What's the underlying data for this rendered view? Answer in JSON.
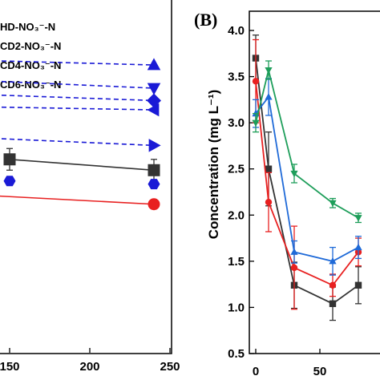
{
  "chart_data": [
    {
      "type": "line",
      "legend": [
        "HD-NO₃⁻-N",
        "CD2-NO₃⁻-N",
        "CD4-NO₃⁻-N",
        "CD6-NO₃⁻-N"
      ],
      "xticks": [
        "150",
        "200",
        "250"
      ],
      "xlim": [
        132,
        250
      ],
      "series": [
        {
          "color": "#1a1ad6",
          "marker": "triangle-up",
          "style": "dashed",
          "x": [
            130,
            240
          ],
          "y": [
            9.45,
            9.3
          ]
        },
        {
          "color": "#1a1ad6",
          "marker": "triangle-down",
          "style": "dashed",
          "x": [
            130,
            240
          ],
          "y": [
            8.8,
            8.55
          ]
        },
        {
          "color": "#1a1ad6",
          "marker": "diamond",
          "style": "dashed",
          "x": [
            130,
            240
          ],
          "y": [
            8.35,
            8.15
          ]
        },
        {
          "color": "#1a1ad6",
          "marker": "triangle-left",
          "style": "dashed",
          "x": [
            130,
            240
          ],
          "y": [
            7.95,
            7.85
          ]
        },
        {
          "color": "#1a1ad6",
          "marker": "triangle-right",
          "style": "dashed",
          "x": [
            130,
            240
          ],
          "y": [
            6.95,
            6.7
          ]
        },
        {
          "color": "#333333",
          "marker": "square",
          "style": "solid",
          "x": [
            150,
            240
          ],
          "y": [
            6.25,
            5.9
          ],
          "err": [
            0.35,
            0.35
          ]
        },
        {
          "color": "#1a1ad6",
          "marker": "hexagon",
          "style": "none",
          "x": [
            150,
            240
          ],
          "y": [
            5.55,
            5.45
          ]
        },
        {
          "color": "#e82020",
          "marker": "circle",
          "style": "solid",
          "x": [
            130,
            240
          ],
          "y": [
            5.1,
            4.8
          ],
          "err": [
            0,
            0.15
          ]
        }
      ]
    },
    {
      "type": "line",
      "panel_label": "(B)",
      "ylabel": "Concentration (mg L⁻¹)",
      "ylim": [
        0.5,
        4.2
      ],
      "yticks": [
        "0.5",
        "1.0",
        "1.5",
        "2.0",
        "2.5",
        "3.0",
        "3.5",
        "4.0"
      ],
      "xlim": [
        -2,
        80
      ],
      "xticks": [
        "0",
        "50"
      ],
      "series": [
        {
          "color": "#333333",
          "marker": "square",
          "x": [
            0,
            10,
            30,
            60,
            80
          ],
          "y": [
            3.7,
            2.5,
            1.24,
            1.04,
            1.24
          ],
          "err": [
            0.25,
            0.4,
            0.25,
            0.18,
            0.2
          ]
        },
        {
          "color": "#e82020",
          "marker": "circle",
          "x": [
            0,
            10,
            30,
            60,
            80
          ],
          "y": [
            3.45,
            2.14,
            1.43,
            1.24,
            1.6
          ],
          "err": [
            0.45,
            0.32,
            0.45,
            0.12,
            0.15
          ]
        },
        {
          "color": "#1f6ad8",
          "marker": "triangle-up",
          "x": [
            0,
            10,
            30,
            60,
            80
          ],
          "y": [
            3.1,
            3.28,
            1.6,
            1.5,
            1.65
          ],
          "err": [
            0.15,
            0.2,
            0.12,
            0.15,
            0.12
          ]
        },
        {
          "color": "#1e9e5a",
          "marker": "triangle-down",
          "x": [
            0,
            10,
            30,
            60,
            80
          ],
          "y": [
            3.0,
            3.57,
            2.45,
            2.13,
            1.97
          ],
          "err": [
            0.1,
            0.1,
            0.1,
            0.05,
            0.05
          ]
        }
      ]
    }
  ]
}
